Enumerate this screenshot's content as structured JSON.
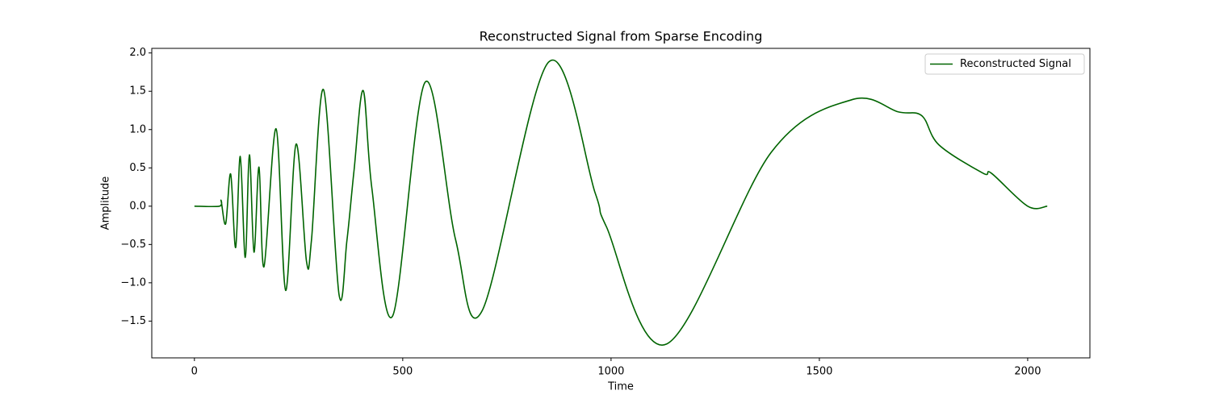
{
  "chart_data": {
    "type": "line",
    "title": "Reconstructed Signal from Sparse Encoding",
    "x_label": "Time",
    "y_label": "Amplitude",
    "x": [
      0,
      60,
      64,
      75,
      87,
      99,
      110,
      122,
      132,
      143,
      155,
      167,
      196,
      219,
      244,
      269,
      281,
      310,
      347,
      366,
      383,
      405,
      426,
      476,
      554,
      627,
      691,
      850,
      962,
      989,
      1133,
      1384,
      1578,
      1690,
      1746,
      1787,
      1893,
      1913,
      2000,
      2047
    ],
    "series": [
      {
        "name": "Reconstructed Signal",
        "color": "#006400",
        "values": [
          0,
          0,
          0.07,
          -0.23,
          0.42,
          -0.54,
          0.65,
          -0.67,
          0.67,
          -0.6,
          0.51,
          -0.79,
          1.01,
          -1.1,
          0.81,
          -0.72,
          -0.44,
          1.52,
          -1.15,
          -0.45,
          0.46,
          1.51,
          0.23,
          -1.43,
          1.62,
          -0.44,
          -1.36,
          1.88,
          0.17,
          -0.27,
          -1.8,
          0.7,
          1.39,
          1.23,
          1.18,
          0.8,
          0.43,
          0.43,
          0,
          0
        ]
      }
    ],
    "xlim": [
      -102.35,
      2149.35
    ],
    "ylim": [
      -1.98,
      2.06
    ],
    "xticks": [
      0,
      500,
      1000,
      1500,
      2000
    ],
    "yticks": [
      {
        "value": -1.5,
        "label": "−1.5"
      },
      {
        "value": -1.0,
        "label": "−1.0"
      },
      {
        "value": -0.5,
        "label": "−0.5"
      },
      {
        "value": 0,
        "label": "0.0"
      },
      {
        "value": 0.5,
        "label": "0.5"
      },
      {
        "value": 1.0,
        "label": "1.0"
      },
      {
        "value": 1.5,
        "label": "1.5"
      },
      {
        "value": 2.0,
        "label": "2.0"
      }
    ],
    "legend": "upper right"
  }
}
